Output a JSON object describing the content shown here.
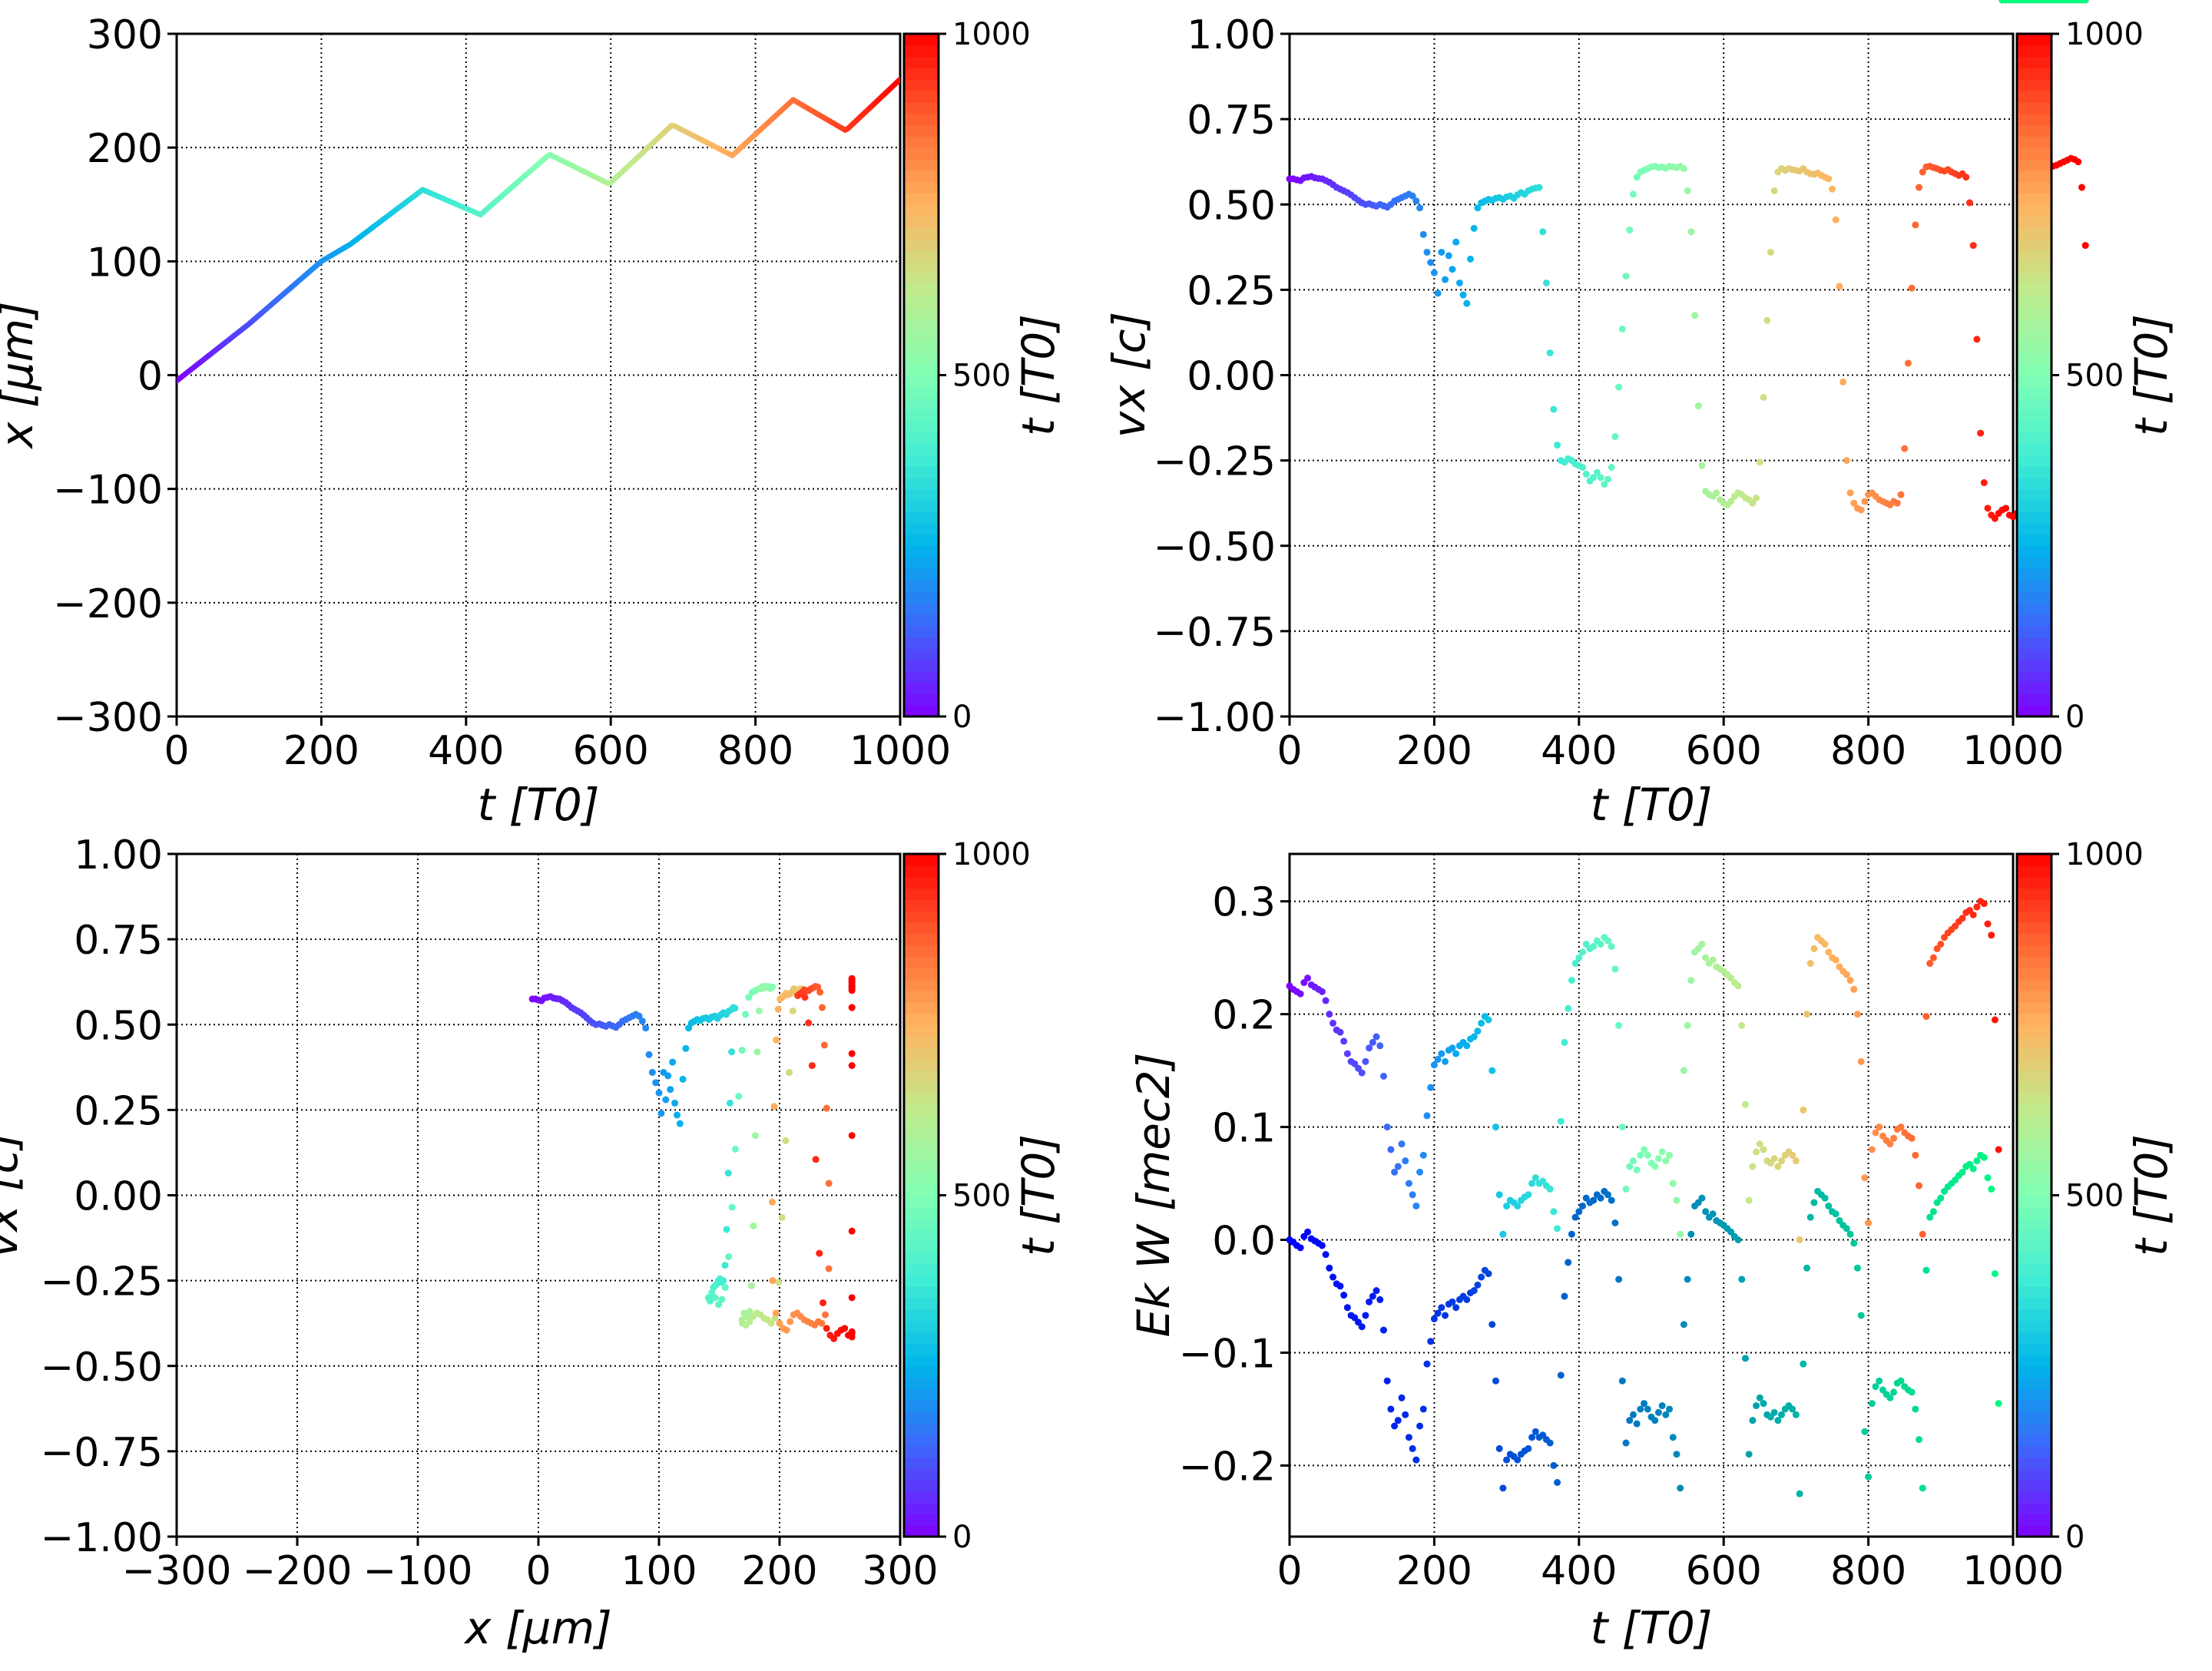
{
  "figure": {
    "colorbar_label": "t [T0]",
    "colorbar_ticks": [
      "0",
      "500",
      "1000"
    ],
    "colormaps": {
      "rainbow": [
        "#8000ff",
        "#4062fa",
        "#00b5eb",
        "#40ecd4",
        "#80ffb4",
        "#c0eb8d",
        "#ffb360",
        "#ff6230",
        "#ff0000"
      ],
      "winter": [
        "#0000ff",
        "#00ff80"
      ]
    }
  },
  "chart_data": [
    {
      "id": "x_vs_t",
      "type": "line",
      "title": "",
      "xlabel": "t  [T0]",
      "ylabel": "x  [μm]",
      "xlim": [
        0,
        1000
      ],
      "ylim": [
        -300,
        300
      ],
      "xticks": [
        0,
        200,
        400,
        600,
        800,
        1000
      ],
      "yticks": [
        -300,
        -200,
        -100,
        0,
        100,
        200,
        300
      ],
      "grid": true,
      "color_by": "t",
      "colormap": "rainbow",
      "colorbar": {
        "label": "t [T0]",
        "range": [
          0,
          1000
        ],
        "ticks": [
          0,
          500,
          1000
        ]
      },
      "x": [
        0,
        100,
        200,
        240,
        340,
        420,
        515,
        598,
        685,
        768,
        852,
        925,
        1000
      ],
      "y": [
        -5,
        45,
        100,
        115,
        163,
        141,
        194,
        168,
        220,
        193,
        242,
        215,
        260
      ]
    },
    {
      "id": "vx_vs_t",
      "type": "scatter",
      "title": "",
      "xlabel": "t [T0]",
      "ylabel": "vx [c]",
      "xlim": [
        0,
        1000
      ],
      "ylim": [
        -1.0,
        1.0
      ],
      "xticks": [
        0,
        200,
        400,
        600,
        800,
        1000
      ],
      "yticks": [
        -1.0,
        -0.75,
        -0.5,
        -0.25,
        0.0,
        0.25,
        0.5,
        0.75,
        1.0
      ],
      "ytick_labels": [
        "−1.00",
        "−0.75",
        "−0.50",
        "−0.25",
        "0.00",
        "0.25",
        "0.50",
        "0.75",
        "1.00"
      ],
      "grid": true,
      "color_by": "t",
      "colormap": "rainbow",
      "colorbar": {
        "label": "t [T0]",
        "range": [
          0,
          1000
        ],
        "ticks": [
          0,
          500,
          1000
        ]
      },
      "series_ref": "trajectory.vx"
    },
    {
      "id": "vx_vs_x",
      "type": "scatter",
      "title": "",
      "xlabel": "x [μm]",
      "ylabel": "vx [c]",
      "xlim": [
        -300,
        300
      ],
      "ylim": [
        -1.0,
        1.0
      ],
      "xticks": [
        -300,
        -200,
        -100,
        0,
        100,
        200,
        300
      ],
      "yticks": [
        -1.0,
        -0.75,
        -0.5,
        -0.25,
        0.0,
        0.25,
        0.5,
        0.75,
        1.0
      ],
      "ytick_labels": [
        "−1.00",
        "−0.75",
        "−0.50",
        "−0.25",
        "0.00",
        "0.25",
        "0.50",
        "0.75",
        "1.00"
      ],
      "grid": true,
      "color_by": "t",
      "colormap": "rainbow",
      "colorbar": {
        "label": "t [T0]",
        "range": [
          0,
          1000
        ],
        "ticks": [
          0,
          500,
          1000
        ]
      },
      "series_ref": "trajectory.x vs trajectory.vx"
    },
    {
      "id": "energy_vs_t",
      "type": "scatter",
      "title": "",
      "xlabel": "t [T0]",
      "ylabel": "Ek W [mec2]",
      "xlim": [
        0,
        1000
      ],
      "ylim": [
        -0.263,
        0.342
      ],
      "xticks": [
        0,
        200,
        400,
        600,
        800,
        1000
      ],
      "yticks": [
        -0.2,
        -0.1,
        0.0,
        0.1,
        0.2,
        0.3
      ],
      "ytick_labels": [
        "−0.2",
        "−0.1",
        "0.0",
        "0.1",
        "0.2",
        "0.3"
      ],
      "grid": true,
      "series": [
        {
          "name": "Ek",
          "colormap": "rainbow",
          "series_ref": "trajectory.ek"
        },
        {
          "name": "W",
          "colormap": "winter",
          "series_ref": "trajectory.w"
        }
      ],
      "colorbar": {
        "label": "t [T0]",
        "range": [
          0,
          1000
        ],
        "ticks": [
          0,
          500,
          1000
        ]
      }
    }
  ],
  "trajectory": {
    "t_start": 0,
    "t_step": 5,
    "vx": [
      0.575,
      0.575,
      0.572,
      0.57,
      0.578,
      0.58,
      0.582,
      0.578,
      0.576,
      0.575,
      0.57,
      0.565,
      0.558,
      0.55,
      0.545,
      0.54,
      0.535,
      0.528,
      0.52,
      0.512,
      0.505,
      0.5,
      0.502,
      0.498,
      0.495,
      0.5,
      0.496,
      0.492,
      0.5,
      0.51,
      0.515,
      0.52,
      0.525,
      0.53,
      0.525,
      0.51,
      0.49,
      0.412,
      0.36,
      0.33,
      0.3,
      0.24,
      0.36,
      0.28,
      0.35,
      0.31,
      0.39,
      0.27,
      0.235,
      0.21,
      0.34,
      0.43,
      0.49,
      0.505,
      0.51,
      0.515,
      0.512,
      0.518,
      0.52,
      0.515,
      0.522,
      0.525,
      0.518,
      0.528,
      0.535,
      0.53,
      0.54,
      0.545,
      0.548,
      0.55,
      0.42,
      0.27,
      0.065,
      -0.1,
      -0.205,
      -0.25,
      -0.255,
      -0.245,
      -0.25,
      -0.26,
      -0.265,
      -0.27,
      -0.29,
      -0.31,
      -0.3,
      -0.285,
      -0.3,
      -0.32,
      -0.305,
      -0.27,
      -0.18,
      -0.035,
      0.135,
      0.29,
      0.425,
      0.53,
      0.58,
      0.595,
      0.6,
      0.605,
      0.61,
      0.612,
      0.608,
      0.61,
      0.606,
      0.612,
      0.61,
      0.608,
      0.612,
      0.605,
      0.54,
      0.42,
      0.175,
      -0.09,
      -0.265,
      -0.34,
      -0.35,
      -0.355,
      -0.345,
      -0.365,
      -0.375,
      -0.38,
      -0.37,
      -0.355,
      -0.345,
      -0.35,
      -0.36,
      -0.365,
      -0.375,
      -0.36,
      -0.255,
      -0.065,
      0.16,
      0.36,
      0.54,
      0.595,
      0.605,
      0.6,
      0.605,
      0.602,
      0.6,
      0.598,
      0.605,
      0.595,
      0.59,
      0.588,
      0.592,
      0.585,
      0.58,
      0.575,
      0.545,
      0.455,
      0.26,
      -0.02,
      -0.25,
      -0.345,
      -0.375,
      -0.39,
      -0.395,
      -0.37,
      -0.35,
      -0.345,
      -0.355,
      -0.365,
      -0.37,
      -0.375,
      -0.38,
      -0.37,
      -0.375,
      -0.35,
      -0.215,
      0.035,
      0.255,
      0.44,
      0.55,
      0.595,
      0.61,
      0.612,
      0.608,
      0.605,
      0.6,
      0.598,
      0.602,
      0.595,
      0.59,
      0.585,
      0.59,
      0.58,
      0.505,
      0.38,
      0.105,
      -0.17,
      -0.315,
      -0.39,
      -0.41,
      -0.42,
      -0.405,
      -0.395,
      -0.39,
      -0.41,
      -0.415,
      -0.405,
      -0.4,
      -0.3,
      -0.105,
      0.175,
      0.415,
      0.55,
      0.6,
      0.605,
      0.61,
      0.612,
      0.615,
      0.62,
      0.625,
      0.63,
      0.635,
      0.632,
      0.625,
      0.55,
      0.38
    ],
    "ek": [
      0.225,
      0.222,
      0.22,
      0.218,
      0.228,
      0.232,
      0.226,
      0.224,
      0.222,
      0.22,
      0.212,
      0.2,
      0.192,
      0.186,
      0.184,
      0.176,
      0.165,
      0.158,
      0.156,
      0.152,
      0.148,
      0.158,
      0.17,
      0.175,
      0.18,
      0.172,
      0.145,
      0.1,
      0.08,
      0.06,
      0.065,
      0.085,
      0.07,
      0.05,
      0.04,
      0.03,
      0.06,
      0.075,
      0.11,
      0.135,
      0.155,
      0.16,
      0.165,
      0.158,
      0.168,
      0.17,
      0.165,
      0.172,
      0.175,
      0.172,
      0.178,
      0.18,
      0.185,
      0.192,
      0.198,
      0.195,
      0.15,
      0.1,
      0.04,
      0.005,
      0.03,
      0.035,
      0.033,
      0.03,
      0.035,
      0.038,
      0.04,
      0.05,
      0.055,
      0.05,
      0.052,
      0.048,
      0.045,
      0.025,
      0.01,
      0.105,
      0.175,
      0.205,
      0.23,
      0.245,
      0.25,
      0.255,
      0.262,
      0.258,
      0.26,
      0.265,
      0.262,
      0.268,
      0.265,
      0.26,
      0.24,
      0.19,
      0.1,
      0.045,
      0.065,
      0.07,
      0.062,
      0.075,
      0.08,
      0.075,
      0.068,
      0.065,
      0.072,
      0.078,
      0.07,
      0.075,
      0.05,
      0.035,
      0.005,
      0.15,
      0.19,
      0.23,
      0.255,
      0.258,
      0.262,
      0.25,
      0.245,
      0.248,
      0.242,
      0.24,
      0.238,
      0.235,
      0.232,
      0.228,
      0.225,
      0.19,
      0.12,
      0.035,
      0.065,
      0.078,
      0.085,
      0.08,
      0.07,
      0.068,
      0.072,
      0.065,
      0.07,
      0.075,
      0.078,
      0.075,
      0.07,
      0.0,
      0.115,
      0.2,
      0.245,
      0.258,
      0.268,
      0.265,
      0.262,
      0.255,
      0.25,
      0.248,
      0.242,
      0.238,
      0.235,
      0.23,
      0.222,
      0.2,
      0.158,
      0.055,
      0.015,
      0.08,
      0.095,
      0.1,
      0.092,
      0.088,
      0.085,
      0.09,
      0.098,
      0.1,
      0.095,
      0.092,
      0.09,
      0.075,
      0.048,
      0.005,
      0.198,
      0.245,
      0.25,
      0.258,
      0.262,
      0.268,
      0.272,
      0.275,
      0.278,
      0.282,
      0.285,
      0.29,
      0.292,
      0.288,
      0.295,
      0.3,
      0.298,
      0.28,
      0.27,
      0.195,
      0.08
    ],
    "w": [
      0.0,
      -0.002,
      -0.005,
      -0.007,
      0.003,
      0.007,
      0.001,
      -0.001,
      -0.003,
      -0.005,
      -0.013,
      -0.025,
      -0.033,
      -0.039,
      -0.041,
      -0.049,
      -0.06,
      -0.067,
      -0.069,
      -0.073,
      -0.077,
      -0.067,
      -0.055,
      -0.05,
      -0.045,
      -0.053,
      -0.08,
      -0.125,
      -0.15,
      -0.165,
      -0.16,
      -0.14,
      -0.155,
      -0.175,
      -0.185,
      -0.195,
      -0.165,
      -0.15,
      -0.11,
      -0.09,
      -0.07,
      -0.065,
      -0.06,
      -0.067,
      -0.057,
      -0.055,
      -0.06,
      -0.053,
      -0.05,
      -0.053,
      -0.047,
      -0.045,
      -0.04,
      -0.033,
      -0.027,
      -0.03,
      -0.075,
      -0.125,
      -0.185,
      -0.22,
      -0.195,
      -0.19,
      -0.192,
      -0.195,
      -0.19,
      -0.187,
      -0.185,
      -0.175,
      -0.17,
      -0.175,
      -0.173,
      -0.177,
      -0.18,
      -0.2,
      -0.215,
      -0.12,
      -0.05,
      -0.02,
      0.005,
      0.02,
      0.025,
      0.03,
      0.037,
      0.033,
      0.035,
      0.04,
      0.037,
      0.043,
      0.04,
      0.035,
      0.015,
      -0.035,
      -0.125,
      -0.18,
      -0.16,
      -0.155,
      -0.163,
      -0.15,
      -0.145,
      -0.15,
      -0.157,
      -0.16,
      -0.153,
      -0.147,
      -0.155,
      -0.15,
      -0.175,
      -0.19,
      -0.22,
      -0.075,
      -0.035,
      0.005,
      0.03,
      0.033,
      0.037,
      0.025,
      0.02,
      0.023,
      0.017,
      0.015,
      0.013,
      0.01,
      0.007,
      0.003,
      0.0,
      -0.035,
      -0.105,
      -0.19,
      -0.16,
      -0.147,
      -0.14,
      -0.145,
      -0.155,
      -0.157,
      -0.153,
      -0.16,
      -0.155,
      -0.15,
      -0.147,
      -0.15,
      -0.155,
      -0.225,
      -0.11,
      -0.025,
      0.02,
      0.033,
      0.043,
      0.04,
      0.037,
      0.03,
      0.025,
      0.023,
      0.017,
      0.013,
      0.01,
      0.005,
      -0.003,
      -0.025,
      -0.067,
      -0.17,
      -0.21,
      -0.145,
      -0.13,
      -0.125,
      -0.133,
      -0.137,
      -0.14,
      -0.135,
      -0.127,
      -0.125,
      -0.13,
      -0.133,
      -0.135,
      -0.15,
      -0.177,
      -0.22,
      -0.027,
      0.02,
      0.025,
      0.033,
      0.037,
      0.043,
      0.047,
      0.05,
      0.053,
      0.057,
      0.06,
      0.065,
      0.067,
      0.063,
      0.07,
      0.075,
      0.073,
      0.055,
      0.045,
      -0.03,
      -0.145
    ]
  }
}
